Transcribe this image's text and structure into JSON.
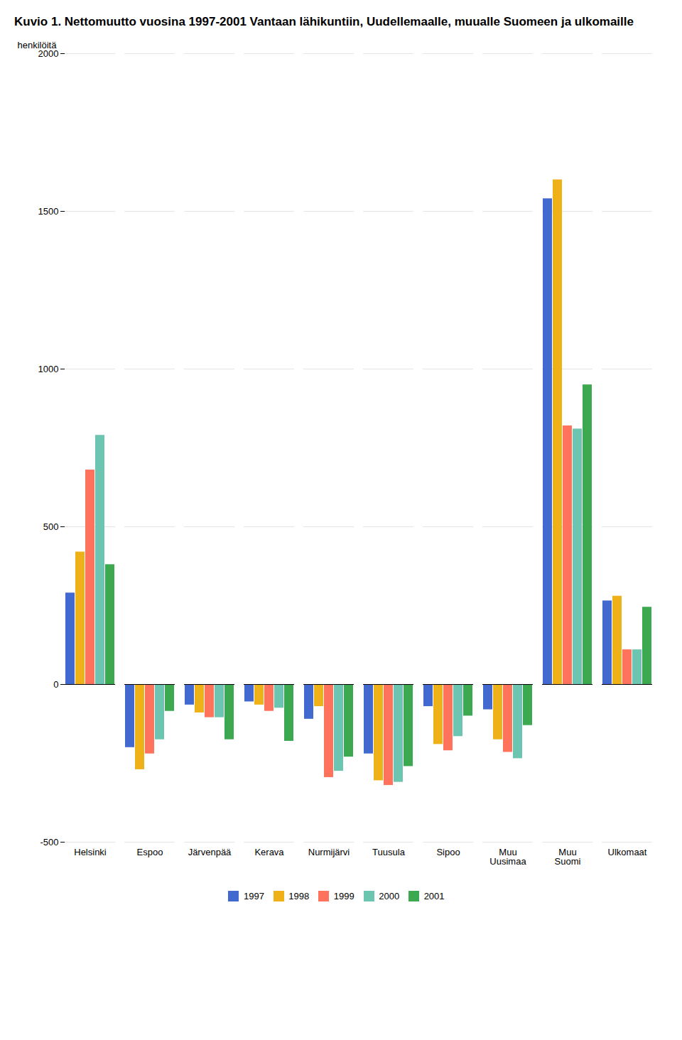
{
  "chart_data": {
    "type": "bar",
    "title": "Kuvio 1. Nettomuutto vuosina 1997-2001 Vantaan lähikuntiin, Uudellemaalle, muualle Suomeen ja ulkomaille",
    "y_label": "henkilöitä",
    "categories": [
      "Helsinki",
      "Espoo",
      "Järvenpää",
      "Kerava",
      "Nurmijärvi",
      "Tuusula",
      "Sipoo",
      "Muu\nUusimaa",
      "Muu\nSuomi",
      "Ulkomaat"
    ],
    "series": [
      {
        "name": "1997",
        "values": [
          290,
          -200,
          -65,
          -55,
          -110,
          -220,
          -70,
          -80,
          1540,
          265
        ]
      },
      {
        "name": "1998",
        "values": [
          420,
          -270,
          -90,
          -65,
          -70,
          -305,
          -190,
          -175,
          1600,
          280
        ]
      },
      {
        "name": "1999",
        "values": [
          680,
          -220,
          -105,
          -85,
          -295,
          -320,
          -210,
          -215,
          820,
          110
        ]
      },
      {
        "name": "2000",
        "values": [
          790,
          -175,
          -105,
          -75,
          -275,
          -310,
          -165,
          -235,
          810,
          110
        ]
      },
      {
        "name": "2001",
        "values": [
          380,
          -85,
          -175,
          -180,
          -230,
          -260,
          -100,
          -130,
          950,
          245
        ]
      }
    ],
    "ylim": [
      -500,
      2000
    ],
    "yticks": [
      -500,
      0,
      500,
      1000,
      1500,
      2000
    ],
    "grid": true,
    "legend": "bottom"
  }
}
